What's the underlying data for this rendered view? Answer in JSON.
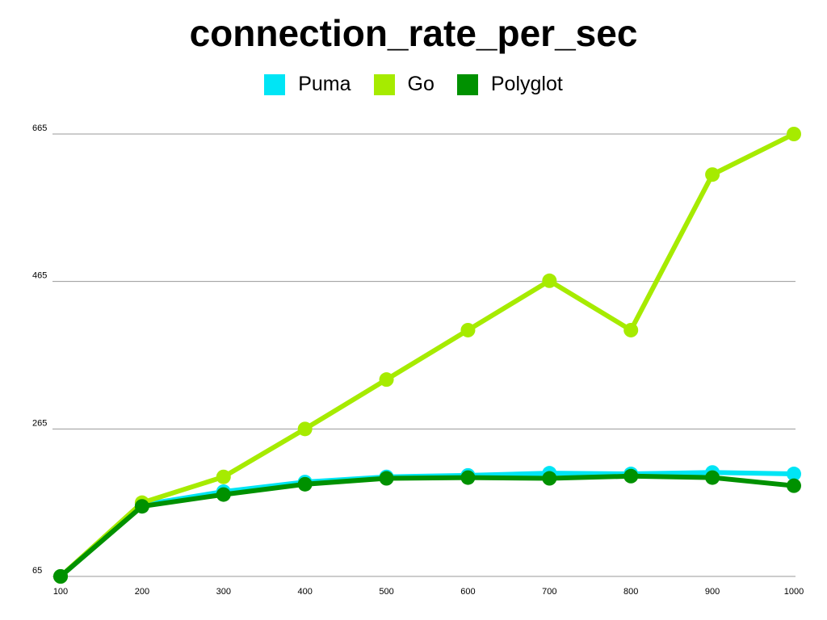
{
  "chart_data": {
    "type": "line",
    "title": "connection_rate_per_sec",
    "xlabel": "",
    "ylabel": "",
    "x": [
      100,
      200,
      300,
      400,
      500,
      600,
      700,
      800,
      900,
      1000
    ],
    "xticks": [
      "100",
      "200",
      "300",
      "400",
      "500",
      "600",
      "700",
      "800",
      "900",
      "1000"
    ],
    "yticks": [
      "65",
      "265",
      "465",
      "665"
    ],
    "ylim": [
      65,
      665
    ],
    "grid": "horizontal",
    "legend_placement": "top-center",
    "series": [
      {
        "name": "Puma",
        "color": "#00E5F5",
        "values": [
          65,
          162,
          180,
          193,
          200,
          202,
          205,
          204,
          206,
          204
        ]
      },
      {
        "name": "Go",
        "color": "#A6EB00",
        "values": [
          65,
          165,
          200,
          265,
          332,
          399,
          466,
          399,
          610,
          665
        ]
      },
      {
        "name": "Polyglot",
        "color": "#009100",
        "values": [
          65,
          160,
          176,
          190,
          198,
          199,
          198,
          201,
          199,
          188
        ]
      }
    ]
  }
}
